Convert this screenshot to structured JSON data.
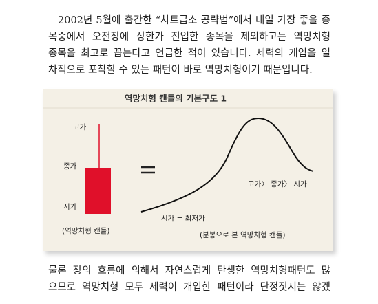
{
  "top_paragraph": {
    "lines": [
      "2002년 5월에 출간한 “차트급소 공략법”에서 내일 가장 좋을 종",
      "목중에서 오전장에 상한가 진입한 종목을 제외하고는 역망치형",
      "종목을 최고로 꼽는다고 언급한 적이 있습니다. 세력의 개입을 일",
      "차적으로 포착할 수 있는 패턴이 바로 역망치형이기 때문입니다."
    ]
  },
  "figure": {
    "title": "역망치형 캔들의 기본구도 1",
    "candle_labels": {
      "high": "고가",
      "close": "종가",
      "open": "시가"
    },
    "candle_caption": "(역망치형 캔들)",
    "curve_order_label": "고가〉 종가〉 시가",
    "curve_low_label": "시가 = 최저가",
    "curve_caption": "(분봉으로 본 역망치형 캔들)"
  },
  "bottom_paragraph": {
    "lines": [
      "물론 장의 흐름에 의해서 자연스럽게 탄생한 역망치형패턴도 많",
      "으므로 역망치형 모두 세력이 개입한 패턴이라 단정짓지는 않겠"
    ]
  }
}
